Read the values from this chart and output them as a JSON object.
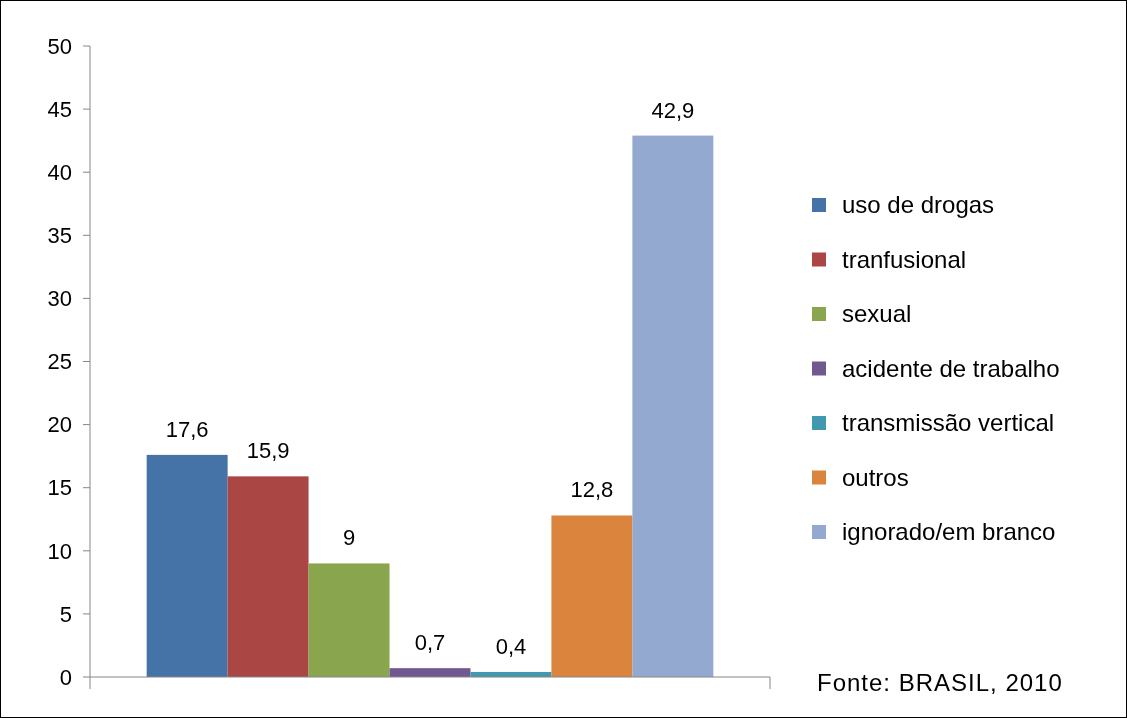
{
  "chart_data": {
    "type": "bar",
    "categories": [
      null
    ],
    "series": [
      {
        "name": "uso de drogas",
        "color": "#4572a7",
        "values": [
          17.6
        ],
        "value_labels": [
          "17,6"
        ]
      },
      {
        "name": "tranfusional",
        "color": "#aa4643",
        "values": [
          15.9
        ],
        "value_labels": [
          "15,9"
        ]
      },
      {
        "name": "sexual",
        "color": "#89a54e",
        "values": [
          9
        ],
        "value_labels": [
          "9"
        ]
      },
      {
        "name": "acidente de trabalho",
        "color": "#71588f",
        "values": [
          0.7
        ],
        "value_labels": [
          "0,7"
        ]
      },
      {
        "name": "transmissão vertical",
        "color": "#4198af",
        "values": [
          0.4
        ],
        "value_labels": [
          "0,4"
        ]
      },
      {
        "name": "outros",
        "color": "#db843d",
        "values": [
          12.8
        ],
        "value_labels": [
          "12,8"
        ]
      },
      {
        "name": "ignorado/em branco",
        "color": "#93a9cf",
        "values": [
          42.9
        ],
        "value_labels": [
          "42,9"
        ]
      }
    ],
    "ylim": [
      0,
      50
    ],
    "yticks": [
      0,
      5,
      10,
      15,
      20,
      25,
      30,
      35,
      40,
      45,
      50
    ],
    "grid": false,
    "legend": "right",
    "annotations": [
      "Fonte: BRASIL, 2010"
    ]
  }
}
